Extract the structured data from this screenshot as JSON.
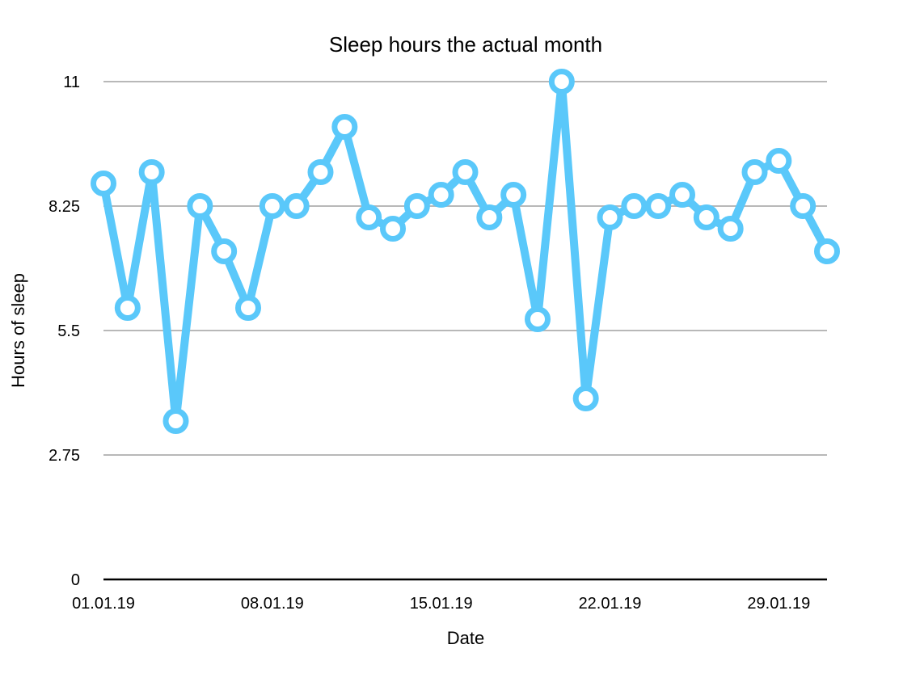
{
  "chart_data": {
    "type": "line",
    "title": "Sleep hours the actual month",
    "xlabel": "Date",
    "ylabel": "Hours of sleep",
    "ylim": [
      0,
      11
    ],
    "yticks": [
      "0",
      "2.75",
      "5.5",
      "8.25",
      "11"
    ],
    "grid": true,
    "legend": "none",
    "x": [
      "01.01.19",
      "02.01.19",
      "03.01.19",
      "04.01.19",
      "05.01.19",
      "06.01.19",
      "07.01.19",
      "08.01.19",
      "09.01.19",
      "10.01.19",
      "11.01.19",
      "12.01.19",
      "13.01.19",
      "14.01.19",
      "15.01.19",
      "16.01.19",
      "17.01.19",
      "18.01.19",
      "19.01.19",
      "20.01.19",
      "21.01.19",
      "22.01.19",
      "23.01.19",
      "24.01.19",
      "25.01.19",
      "26.01.19",
      "27.01.19",
      "28.01.19",
      "29.01.19",
      "30.01.19",
      "31.01.19"
    ],
    "xtick_labels": [
      "01.01.19",
      "08.01.19",
      "15.01.19",
      "22.01.19",
      "29.01.19"
    ],
    "series": [
      {
        "values": [
          8.75,
          6,
          9,
          3.5,
          8.25,
          7.25,
          6,
          8.25,
          8.25,
          9,
          10,
          8,
          7.75,
          8.25,
          8.5,
          9,
          8,
          8.5,
          5.75,
          11,
          4,
          8,
          8.25,
          8.25,
          8.5,
          8,
          7.75,
          9,
          9.25,
          8.25,
          7.25
        ],
        "color": "#5ac8fa"
      }
    ]
  }
}
